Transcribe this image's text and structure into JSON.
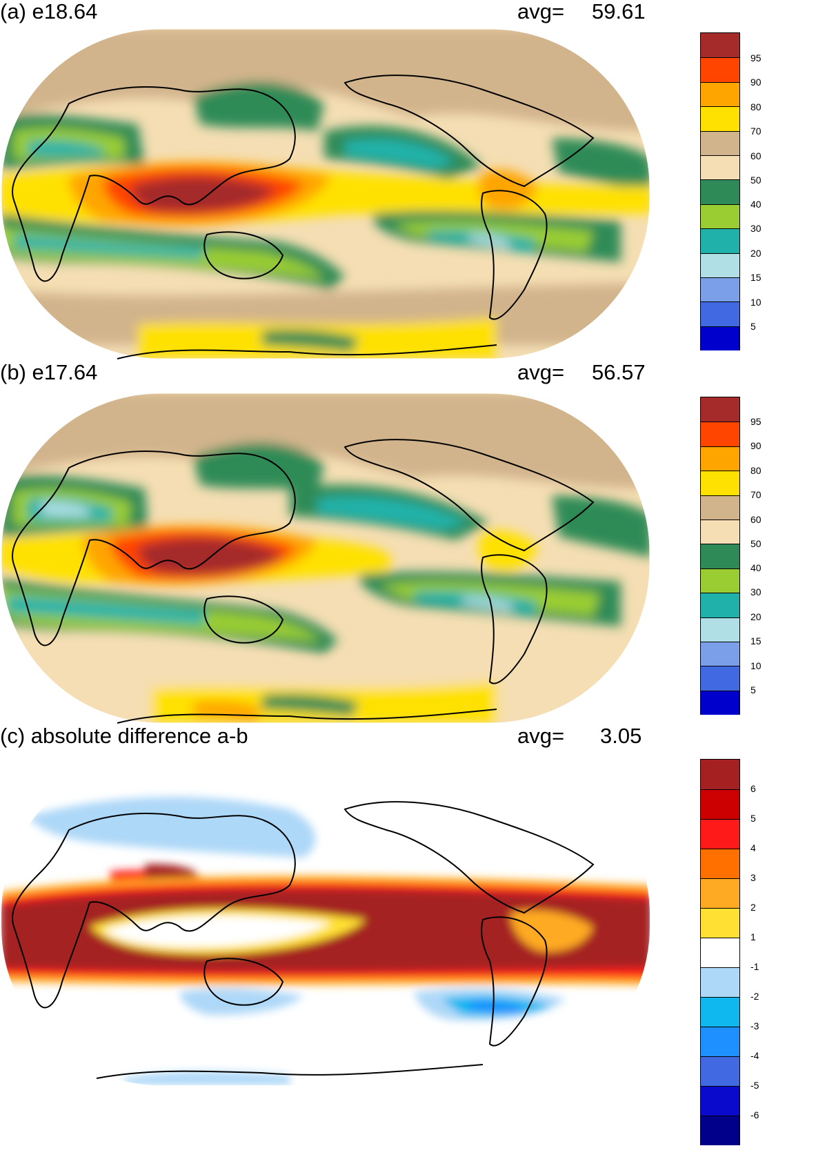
{
  "palette_full": [
    "#a52a2a",
    "#ff4500",
    "#ffa500",
    "#ffe100",
    "#d2b48c",
    "#f5deb3",
    "#2e8b57",
    "#9acd32",
    "#20b2aa",
    "#b0e0e6",
    "#7b9fe8",
    "#4169e1",
    "#0000cd"
  ],
  "palette_diff": [
    "#a52020",
    "#cd0000",
    "#ff1a1a",
    "#ff7000",
    "#ffaa22",
    "#ffe033",
    "#ffffff",
    "#aed8f8",
    "#10b8f0",
    "#1e90ff",
    "#4169e1",
    "#0a0acd",
    "#00008b"
  ],
  "panels": [
    {
      "title": "(a) e18.64",
      "avg_label": "avg=",
      "avg_value": "59.61",
      "colorbar_ticks": [
        "95",
        "90",
        "80",
        "70",
        "60",
        "50",
        "40",
        "30",
        "20",
        "15",
        "10",
        "5"
      ]
    },
    {
      "title": "(b) e17.64",
      "avg_label": "avg=",
      "avg_value": "56.57",
      "colorbar_ticks": [
        "95",
        "90",
        "80",
        "70",
        "60",
        "50",
        "40",
        "30",
        "20",
        "15",
        "10",
        "5"
      ]
    },
    {
      "title": "(c) absolute difference a-b",
      "avg_label": "avg=",
      "avg_value": "3.05",
      "colorbar_ticks": [
        "6",
        "5",
        "4",
        "3",
        "2",
        "1",
        "-1",
        "-2",
        "-3",
        "-4",
        "-5",
        "-6"
      ]
    }
  ]
}
